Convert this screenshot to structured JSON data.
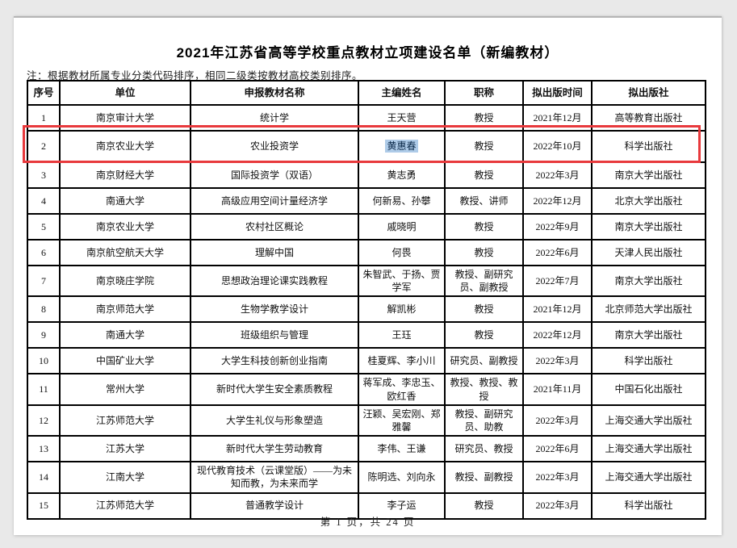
{
  "page": {
    "title": "2021年江苏省高等学校重点教材立项建设名单（新编教材）",
    "note": "注：根据教材所属专业分类代码排序，相同二级类按教材高校类别排序。",
    "footer": "第 1 页，共 24 页"
  },
  "table": {
    "columns": [
      "序号",
      "单位",
      "申报教材名称",
      "主编姓名",
      "职称",
      "拟出版时间",
      "拟出版社"
    ],
    "rows": [
      [
        "1",
        "南京审计大学",
        "统计学",
        "王天营",
        "教授",
        "2021年12月",
        "高等教育出版社"
      ],
      [
        "2",
        "南京农业大学",
        "农业投资学",
        "黄惠春",
        "教授",
        "2022年10月",
        "科学出版社"
      ],
      [
        "3",
        "南京财经大学",
        "国际投资学（双语）",
        "黄志勇",
        "教授",
        "2022年3月",
        "南京大学出版社"
      ],
      [
        "4",
        "南通大学",
        "高级应用空间计量经济学",
        "何新易、孙攀",
        "教授、讲师",
        "2022年12月",
        "北京大学出版社"
      ],
      [
        "5",
        "南京农业大学",
        "农村社区概论",
        "戚晓明",
        "教授",
        "2022年9月",
        "南京大学出版社"
      ],
      [
        "6",
        "南京航空航天大学",
        "理解中国",
        "何畏",
        "教授",
        "2022年6月",
        "天津人民出版社"
      ],
      [
        "7",
        "南京晓庄学院",
        "思想政治理论课实践教程",
        "朱智武、于扬、贾学军",
        "教授、副研究员、副教授",
        "2022年7月",
        "南京大学出版社"
      ],
      [
        "8",
        "南京师范大学",
        "生物学教学设计",
        "解凯彬",
        "教授",
        "2021年12月",
        "北京师范大学出版社"
      ],
      [
        "9",
        "南通大学",
        "班级组织与管理",
        "王珏",
        "教授",
        "2022年12月",
        "南京大学出版社"
      ],
      [
        "10",
        "中国矿业大学",
        "大学生科技创新创业指南",
        "桂夏辉、李小川",
        "研究员、副教授",
        "2022年3月",
        "科学出版社"
      ],
      [
        "11",
        "常州大学",
        "新时代大学生安全素质教程",
        "蒋军成、李忠玉、欧红香",
        "教授、教授、教授",
        "2021年11月",
        "中国石化出版社"
      ],
      [
        "12",
        "江苏师范大学",
        "大学生礼仪与形象塑造",
        "汪颖、吴宏刚、郑雅馨",
        "教授、副研究员、助教",
        "2022年3月",
        "上海交通大学出版社"
      ],
      [
        "13",
        "江苏大学",
        "新时代大学生劳动教育",
        "李伟、王谦",
        "研究员、教授",
        "2022年6月",
        "上海交通大学出版社"
      ],
      [
        "14",
        "江南大学",
        "现代教育技术（云课堂版）——为未知而教，为未来而学",
        "陈明选、刘向永",
        "教授、副教授",
        "2022年3月",
        "上海交通大学出版社"
      ],
      [
        "15",
        "江苏师范大学",
        "普通教学设计",
        "李子运",
        "教授",
        "2022年3月",
        "科学出版社"
      ]
    ],
    "highlight": {
      "row_index": 1,
      "selected_cell": 3,
      "selection_color": "#aecbe8",
      "box_color": "#e8393c"
    }
  }
}
